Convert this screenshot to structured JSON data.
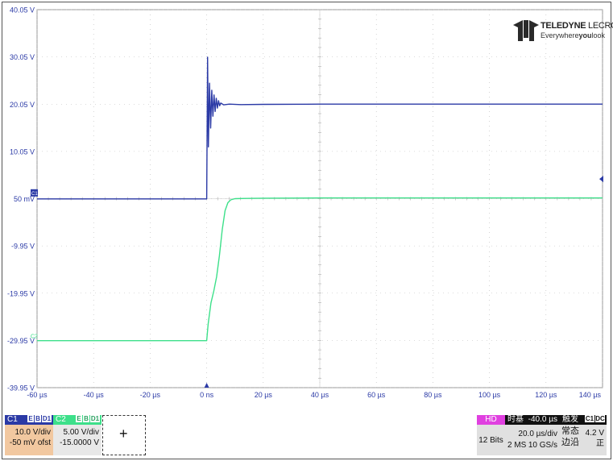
{
  "y_tick_labels": [
    "40.05 V",
    "30.05 V",
    "20.05 V",
    "10.05 V",
    "50 mV",
    "-9.95 V",
    "-19.95 V",
    "-29.95 V",
    "-39.95 V"
  ],
  "x_tick_labels": [
    "-60 µs",
    "-40 µs",
    "-20 µs",
    "0 ns",
    "20 µs",
    "40 µs",
    "60 µs",
    "80 µs",
    "100 µs",
    "120 µs",
    "140 µs"
  ],
  "markers": {
    "c1": "C1",
    "c2": "C2"
  },
  "colors": {
    "c1": "#2b3aa6",
    "c2": "#3de08a",
    "hd": "#e040e0",
    "c1_body": "#f2c8a0",
    "grid": "#b8b8b8"
  },
  "logo": {
    "brand_bold": "TELEDYNE",
    "brand_thin": " LECROY",
    "tag_pre": "Everywhere",
    "tag_bold": "you",
    "tag_post": "look"
  },
  "c1": {
    "name": "C1",
    "flags": [
      "E",
      "B",
      "D1"
    ],
    "vdiv": "10.0 V/div",
    "offset": "-50 mV ofst"
  },
  "c2": {
    "name": "C2",
    "flags": [
      "E",
      "B",
      "D1"
    ],
    "vdiv": "5.00 V/div",
    "offset": "-15.0000 V"
  },
  "add_button": "+",
  "hd": {
    "label": "HD",
    "bits": "12 Bits"
  },
  "timebase": {
    "label": "时基",
    "delay": "-40.0 µs",
    "tdiv": "20.0 µs/div",
    "samples": "2 MS",
    "rate": "10 GS/s"
  },
  "trigger": {
    "label": "触发",
    "flags": [
      "C1",
      "DC"
    ],
    "mode": "常态",
    "level": "4.2 V",
    "type": "边沿",
    "slope": "正"
  },
  "chart_data": {
    "type": "line",
    "xlabel": "",
    "ylabel": "",
    "xlim": [
      -60,
      140
    ],
    "ylim": [
      -39.95,
      40.05
    ],
    "grid": true,
    "series": [
      {
        "name": "C1",
        "x": [
          -60,
          0,
          0.3,
          0.6,
          1.0,
          1.4,
          1.8,
          2.2,
          2.6,
          3.0,
          3.4,
          3.8,
          4.2,
          4.6,
          5.0,
          6,
          8,
          12,
          20,
          40,
          60,
          100,
          140
        ],
        "y": [
          0,
          0,
          30.0,
          11.0,
          24.5,
          15.0,
          23.0,
          17.5,
          22.0,
          18.5,
          21.3,
          19.2,
          20.8,
          19.7,
          20.3,
          19.9,
          20.05,
          19.95,
          20.0,
          20.05,
          20.05,
          20.05,
          20.05
        ]
      },
      {
        "name": "C2",
        "x": [
          -60,
          0,
          0.5,
          1.5,
          2.5,
          3.5,
          4.5,
          5.5,
          6.5,
          7.5,
          8.5,
          10,
          14,
          20,
          40,
          60,
          100,
          140
        ],
        "y": [
          -30.0,
          -30.0,
          -26.5,
          -22.0,
          -19.5,
          -16.5,
          -12.0,
          -6.5,
          -2.5,
          -0.8,
          -0.2,
          0.05,
          0.1,
          0.15,
          0.2,
          0.2,
          0.2,
          0.2
        ]
      }
    ]
  }
}
